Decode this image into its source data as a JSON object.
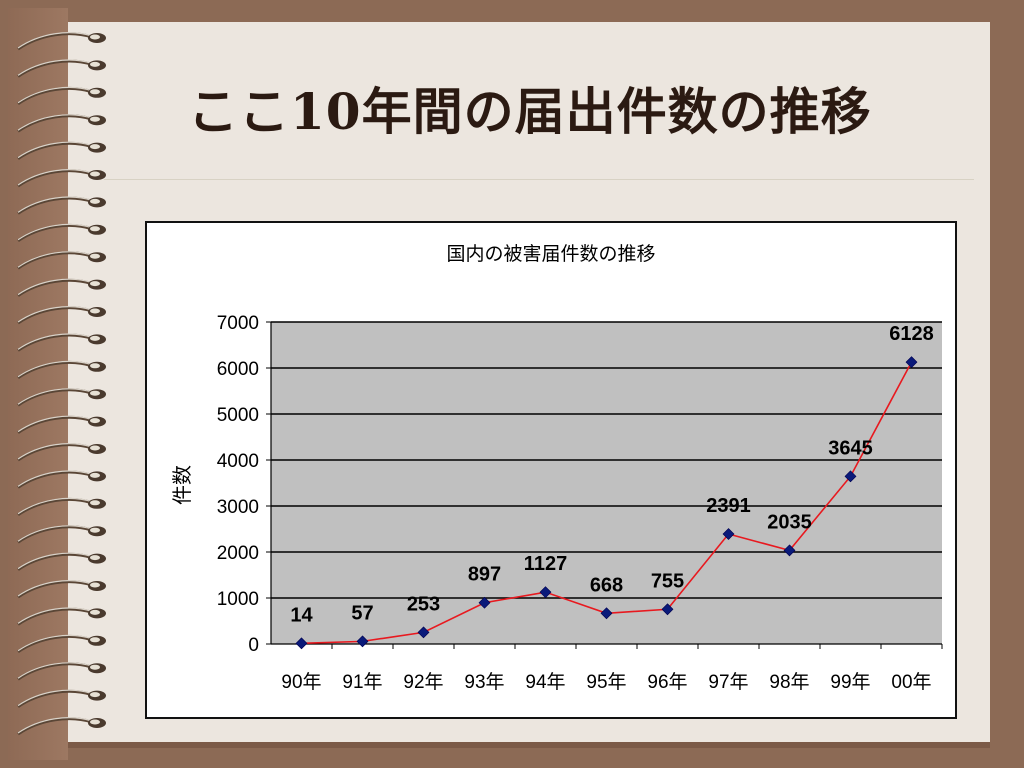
{
  "slide": {
    "title": "ここ10年間の届出件数の推移"
  },
  "colors": {
    "background": "#8c6a55",
    "paper": "#ece6df",
    "plot_area": "#c0c0c0",
    "line": "#e8191f",
    "marker": "#0a1a7a"
  },
  "icons": {
    "binding": "spiral-ring-icon"
  },
  "chart_data": {
    "type": "line",
    "title": "国内の被害届件数の推移",
    "xlabel": "",
    "ylabel": "件数",
    "categories": [
      "90年",
      "91年",
      "92年",
      "93年",
      "94年",
      "95年",
      "96年",
      "97年",
      "98年",
      "99年",
      "00年"
    ],
    "values": [
      14,
      57,
      253,
      897,
      1127,
      668,
      755,
      2391,
      2035,
      3645,
      6128
    ],
    "data_labels": [
      "14",
      "57",
      "253",
      "897",
      "1127",
      "668",
      "755",
      "2391",
      "2035",
      "3645",
      "6128"
    ],
    "ylim": [
      0,
      7000
    ],
    "yticks": [
      0,
      1000,
      2000,
      3000,
      4000,
      5000,
      6000,
      7000
    ],
    "grid": true,
    "legend": "none"
  }
}
